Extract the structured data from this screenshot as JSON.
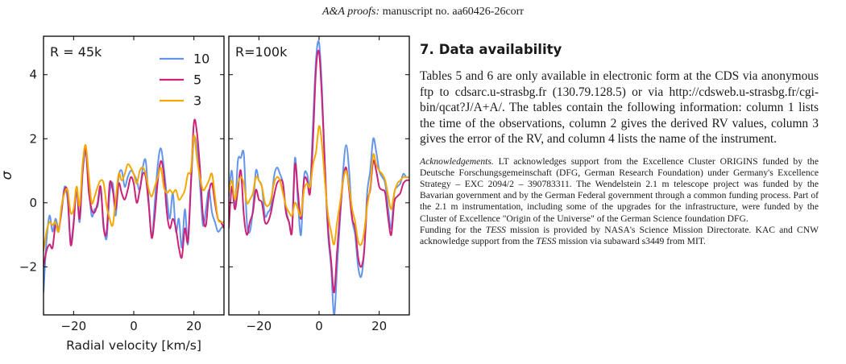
{
  "header": {
    "journal_italic": "A&A proofs:",
    "manuscript": "manuscript no. aa60426-26corr"
  },
  "chart_data": [
    {
      "type": "line",
      "panel_label": "R = 45k",
      "xlabel": "Radial velocity [km/s]",
      "ylabel": "σ",
      "xlim": [
        -30,
        30
      ],
      "ylim": [
        -3.5,
        5.2
      ],
      "xticks": [
        -20,
        0,
        20
      ],
      "yticks": [
        -2,
        0,
        2,
        4
      ],
      "legend_placement": "top-right",
      "series": [
        {
          "name": "10",
          "color": "#6495ed",
          "x": [
            -30,
            -29,
            -28,
            -27,
            -26,
            -25,
            -24,
            -23,
            -22,
            -21,
            -20,
            -19,
            -18,
            -17,
            -16,
            -15,
            -14,
            -13,
            -12,
            -11,
            -10,
            -9,
            -8,
            -7,
            -6,
            -5,
            -4,
            -3,
            -2,
            -1,
            0,
            1,
            2,
            3,
            4,
            5,
            6,
            7,
            8,
            9,
            10,
            11,
            12,
            13,
            14,
            15,
            16,
            17,
            18,
            19,
            20,
            21,
            22,
            23,
            24,
            25,
            26,
            27,
            28,
            29,
            30
          ],
          "y": [
            -2.8,
            -1.2,
            -0.4,
            -0.9,
            -0.5,
            -0.8,
            -0.3,
            0.5,
            0.1,
            -1.2,
            -0.6,
            0.4,
            -0.6,
            0.9,
            1.6,
            0.6,
            -0.4,
            -0.2,
            -0.1,
            0.4,
            -0.7,
            -1.1,
            0.3,
            0.6,
            -0.4,
            0.8,
            1.0,
            0.5,
            0.8,
            1.0,
            0.9,
            0.7,
            0.4,
            1.1,
            1.3,
            0.0,
            -1.1,
            0.0,
            1.2,
            1.7,
            1.1,
            0.2,
            -0.5,
            0.3,
            -0.9,
            -0.5,
            -1.4,
            -0.2,
            -1.3,
            0.5,
            2.0,
            1.7,
            0.6,
            -0.7,
            -0.2,
            0.4,
            -0.3,
            -0.6,
            -0.9,
            -0.8,
            -0.7
          ]
        },
        {
          "name": "5",
          "color": "#cc2277",
          "x": [
            -30,
            -29,
            -28,
            -27,
            -26,
            -25,
            -24,
            -23,
            -22,
            -21,
            -20,
            -19,
            -18,
            -17,
            -16,
            -15,
            -14,
            -13,
            -12,
            -11,
            -10,
            -9,
            -8,
            -7,
            -6,
            -5,
            -4,
            -3,
            -2,
            -1,
            0,
            1,
            2,
            3,
            4,
            5,
            6,
            7,
            8,
            9,
            10,
            11,
            12,
            13,
            14,
            15,
            16,
            17,
            18,
            19,
            20,
            21,
            22,
            23,
            24,
            25,
            26,
            27,
            28,
            29,
            30
          ],
          "y": [
            -2.0,
            -1.5,
            -1.3,
            -1.4,
            -0.7,
            -0.9,
            -0.2,
            0.4,
            0.3,
            -1.3,
            -0.7,
            0.5,
            -0.5,
            1.0,
            1.7,
            0.4,
            -0.2,
            -0.3,
            0.0,
            0.5,
            -0.8,
            -0.9,
            0.6,
            0.4,
            -0.2,
            0.6,
            0.3,
            0.1,
            0.4,
            0.8,
            0.6,
            0.0,
            0.4,
            0.9,
            0.8,
            -0.1,
            -1.1,
            -0.4,
            0.7,
            1.3,
            0.9,
            -0.3,
            -0.8,
            -0.5,
            -0.8,
            -1.4,
            -1.7,
            -0.8,
            -1.2,
            0.6,
            2.5,
            2.2,
            1.1,
            -0.4,
            -0.7,
            0.3,
            0.6,
            0.0,
            -0.5,
            -0.6,
            -0.8
          ]
        },
        {
          "name": "3",
          "color": "#f5a800",
          "x": [
            -30,
            -29,
            -28,
            -27,
            -26,
            -25,
            -24,
            -23,
            -22,
            -21,
            -20,
            -19,
            -18,
            -17,
            -16,
            -15,
            -14,
            -13,
            -12,
            -11,
            -10,
            -9,
            -8,
            -7,
            -6,
            -5,
            -4,
            -3,
            -2,
            -1,
            0,
            1,
            2,
            3,
            4,
            5,
            6,
            7,
            8,
            9,
            10,
            11,
            12,
            13,
            14,
            15,
            16,
            17,
            18,
            19,
            20,
            21,
            22,
            23,
            24,
            25,
            26,
            27,
            28,
            29,
            30
          ],
          "y": [
            -1.5,
            -0.9,
            -0.6,
            -0.7,
            -0.6,
            -0.9,
            -0.1,
            0.3,
            0.4,
            -0.3,
            -0.2,
            0.5,
            -0.1,
            1.2,
            1.8,
            0.9,
            0.0,
            0.2,
            0.5,
            0.7,
            0.6,
            -0.1,
            -0.5,
            -0.7,
            0.1,
            0.9,
            0.7,
            0.9,
            1.2,
            1.1,
            0.9,
            0.6,
            1.0,
            1.1,
            0.9,
            0.4,
            0.2,
            0.5,
            0.8,
            1.1,
            0.5,
            0.3,
            0.4,
            0.3,
            0.4,
            0.1,
            0.2,
            0.4,
            0.9,
            1.0,
            2.1,
            1.4,
            0.8,
            0.4,
            0.5,
            0.7,
            0.9,
            0.2,
            -0.5,
            -0.6,
            -0.6
          ]
        }
      ]
    },
    {
      "type": "line",
      "panel_label": "R=100k",
      "xlabel": "",
      "ylabel": "",
      "xlim": [
        -30,
        30
      ],
      "ylim": [
        -3.5,
        5.2
      ],
      "xticks": [
        -20,
        0,
        20
      ],
      "yticks": [],
      "series": [
        {
          "name": "10",
          "color": "#6495ed",
          "x": [
            -30,
            -29,
            -28,
            -27,
            -26,
            -25,
            -24,
            -23,
            -22,
            -21,
            -20,
            -19,
            -18,
            -17,
            -16,
            -15,
            -14,
            -13,
            -12,
            -11,
            -10,
            -9,
            -8,
            -7,
            -6,
            -5,
            -4,
            -3,
            -2,
            -1,
            0,
            1,
            2,
            3,
            4,
            5,
            6,
            7,
            8,
            9,
            10,
            11,
            12,
            13,
            14,
            15,
            16,
            17,
            18,
            19,
            20,
            21,
            22,
            23,
            24,
            25,
            26,
            27,
            28,
            29,
            30
          ],
          "y": [
            0.2,
            1.0,
            -0.2,
            1.3,
            1.4,
            1.5,
            -0.6,
            -0.9,
            -0.2,
            1.0,
            0.7,
            0.5,
            -0.4,
            -0.3,
            -0.1,
            0.8,
            1.1,
            0.9,
            0.6,
            -0.2,
            -0.6,
            -0.8,
            1.4,
            0.0,
            -1.0,
            0.8,
            0.9,
            0.5,
            2.5,
            4.5,
            5.0,
            3.5,
            1.0,
            -1.0,
            -2.0,
            -3.5,
            -2.0,
            -0.5,
            1.0,
            1.8,
            1.0,
            -0.5,
            -1.0,
            -2.0,
            -2.3,
            -1.5,
            0.3,
            1.0,
            2.0,
            1.6,
            1.0,
            0.8,
            0.6,
            -0.2,
            -0.8,
            0.3,
            0.5,
            0.6,
            0.9,
            0.8,
            0.8
          ]
        },
        {
          "name": "5",
          "color": "#cc2277",
          "x": [
            -30,
            -29,
            -28,
            -27,
            -26,
            -25,
            -24,
            -23,
            -22,
            -21,
            -20,
            -19,
            -18,
            -17,
            -16,
            -15,
            -14,
            -13,
            -12,
            -11,
            -10,
            -9,
            -8,
            -7,
            -6,
            -5,
            -4,
            -3,
            -2,
            -1,
            0,
            1,
            2,
            3,
            4,
            5,
            6,
            7,
            8,
            9,
            10,
            11,
            12,
            13,
            14,
            15,
            16,
            17,
            18,
            19,
            20,
            21,
            22,
            23,
            24,
            25,
            26,
            27,
            28,
            29,
            30
          ],
          "y": [
            -0.8,
            0.5,
            -0.2,
            0.4,
            1.0,
            -0.4,
            -1.0,
            -0.6,
            -0.3,
            0.4,
            0.1,
            0.0,
            -0.6,
            -0.6,
            -0.3,
            0.2,
            0.6,
            0.7,
            0.6,
            -0.3,
            -0.6,
            -0.9,
            1.2,
            0.3,
            -0.5,
            0.7,
            0.7,
            0.3,
            2.0,
            4.2,
            4.7,
            3.2,
            1.0,
            -0.8,
            -1.8,
            -2.8,
            -1.5,
            -0.3,
            0.7,
            1.1,
            0.4,
            -0.5,
            -0.8,
            -1.7,
            -2.0,
            -1.5,
            0.0,
            0.4,
            1.3,
            1.0,
            0.5,
            0.4,
            0.3,
            -0.5,
            -1.0,
            0.0,
            0.2,
            0.3,
            0.6,
            0.7,
            0.7
          ]
        },
        {
          "name": "3",
          "color": "#f5a800",
          "x": [
            -30,
            -29,
            -28,
            -27,
            -26,
            -25,
            -24,
            -23,
            -22,
            -21,
            -20,
            -19,
            -18,
            -17,
            -16,
            -15,
            -14,
            -13,
            -12,
            -11,
            -10,
            -9,
            -8,
            -7,
            -6,
            -5,
            -4,
            -3,
            -2,
            -1,
            0,
            1,
            2,
            3,
            4,
            5,
            6,
            7,
            8,
            9,
            10,
            11,
            12,
            13,
            14,
            15,
            16,
            17,
            18,
            19,
            20,
            21,
            22,
            23,
            24,
            25,
            26,
            27,
            28,
            29,
            30
          ],
          "y": [
            0.3,
            0.7,
            0.1,
            0.6,
            0.8,
            0.6,
            0.0,
            0.1,
            0.3,
            0.8,
            0.7,
            0.5,
            0.0,
            -0.1,
            0.1,
            0.6,
            0.8,
            0.7,
            0.3,
            -0.1,
            -0.3,
            -0.4,
            0.0,
            -0.2,
            -0.4,
            0.4,
            0.6,
            0.5,
            1.2,
            1.6,
            2.4,
            1.8,
            0.6,
            -0.4,
            -0.9,
            -1.3,
            -0.6,
            0.0,
            0.7,
            1.0,
            0.5,
            -0.2,
            -0.6,
            -1.2,
            -1.3,
            -0.9,
            -0.1,
            0.5,
            1.5,
            1.2,
            1.0,
            0.9,
            0.7,
            0.2,
            -0.2,
            0.3,
            0.6,
            0.7,
            0.8,
            0.8,
            0.8
          ]
        }
      ]
    }
  ],
  "section": {
    "number": "7.",
    "title": "Data availability",
    "body": "Tables 5 and 6 are only available in electronic form at the CDS via anonymous ftp to cdsarc.u-strasbg.fr (130.79.128.5) or via http://cdsweb.u-strasbg.fr/cgi-bin/qcat?J/A+A/. The tables contain the following information: column 1 lists the time of the observations, column 2 gives the derived RV values, column 3 gives the error of the RV, and column 4 lists the name of the instrument."
  },
  "acknowledgements": {
    "label": "Acknowledgements.",
    "p1": "LT acknowledges support from the Excellence Cluster ORIGINS funded by the Deutsche Forschungsgemeinschaft (DFG, German Research Foundation) under Germany's Excellence Strategy – EXC 2094/2 – 390783311. The Wendelstein 2.1 m telescope project was funded by the Bavarian government and by the German Federal government through a common funding process. Part of the 2.1 m instrumentation, including some of the upgrades for the infrastructure, were funded by the Cluster of Excellence \"Origin of the Universe\" of the German Science foundation DFG.",
    "p2_a": "Funding for the ",
    "p2_tess1": "TESS",
    "p2_b": " mission is provided by NASA's Science Mission Directorate. KAC and CNW acknowledge support from the ",
    "p2_tess2": "TESS",
    "p2_c": " mission via subaward s3449 from MIT."
  }
}
